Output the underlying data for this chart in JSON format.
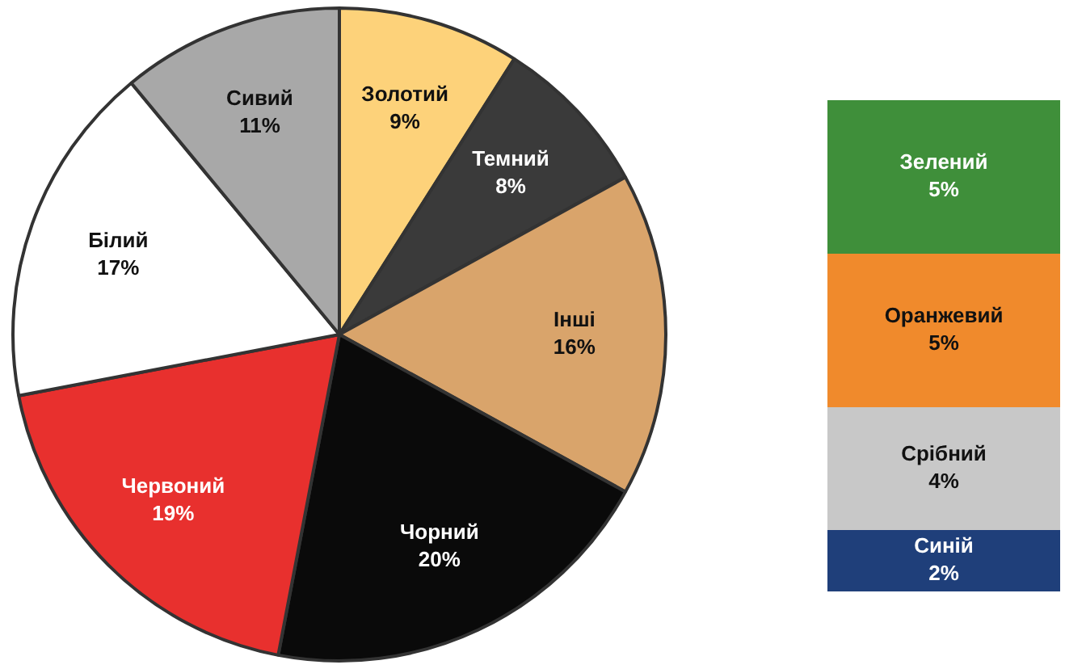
{
  "chart_data": [
    {
      "type": "pie",
      "categories": [
        "Золотий",
        "Темний",
        "Інші",
        "Чорний",
        "Червоний",
        "Білий",
        "Сивий"
      ],
      "values": [
        9,
        8,
        16,
        20,
        19,
        17,
        11
      ],
      "colors": [
        "#fdd27a",
        "#3a3a3a",
        "#d9a46b",
        "#0a0a0a",
        "#e8302e",
        "#ffffff",
        "#a8a8a8"
      ],
      "value_labels": [
        "9%",
        "8%",
        "16%",
        "20%",
        "19%",
        "17%",
        "11%"
      ],
      "legend": false
    },
    {
      "type": "bar",
      "stacked": true,
      "categories": [
        null
      ],
      "tick_labels": false,
      "legend": false,
      "series": [
        {
          "name": "Синій",
          "color": "#1f3f7a",
          "values": [
            2
          ],
          "value_labels": [
            "2%"
          ]
        },
        {
          "name": "Срібний",
          "color": "#c8c8c8",
          "values": [
            4
          ],
          "value_labels": [
            "4%"
          ]
        },
        {
          "name": "Оранжевий",
          "color": "#f08a2c",
          "values": [
            5
          ],
          "value_labels": [
            "5%"
          ]
        },
        {
          "name": "Зелений",
          "color": "#3f8f3a",
          "values": [
            5
          ],
          "value_labels": [
            "5%"
          ]
        }
      ]
    }
  ]
}
